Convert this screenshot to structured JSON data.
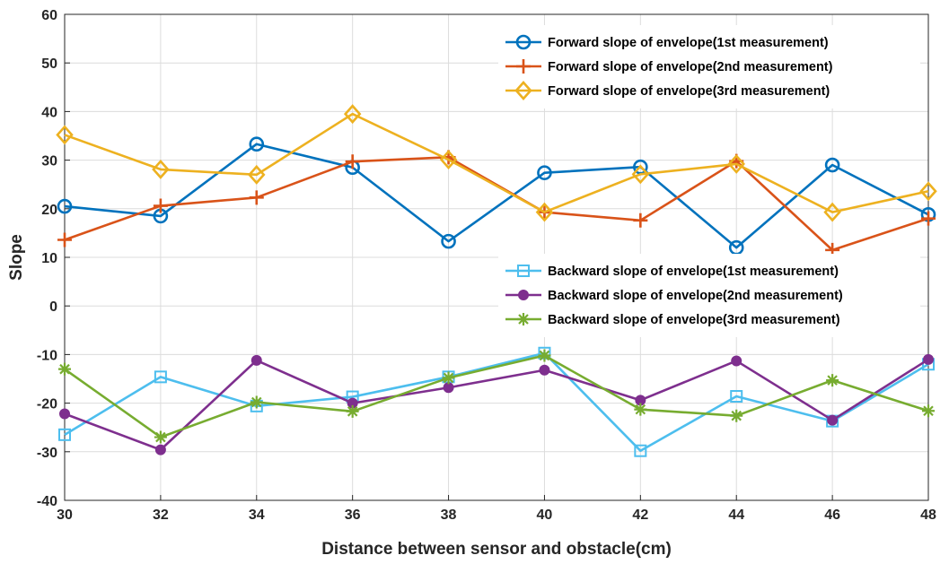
{
  "chart_data": {
    "type": "line",
    "title": "",
    "xlabel": "Distance between sensor and obstacle(cm)",
    "ylabel": "Slope",
    "xlim": [
      30,
      48
    ],
    "ylim": [
      -40,
      60
    ],
    "x": [
      30,
      32,
      34,
      36,
      38,
      40,
      42,
      44,
      46,
      48
    ],
    "x_ticks": [
      "30",
      "32",
      "34",
      "36",
      "38",
      "40",
      "42",
      "44",
      "46",
      "48"
    ],
    "y_ticks": [
      "60",
      "50",
      "40",
      "30",
      "20",
      "10",
      "0",
      "-10",
      "-20",
      "-30",
      "-40"
    ],
    "grid": true,
    "legend_placement": [
      "top-right",
      "middle-right"
    ],
    "series": [
      {
        "name": "Forward slope of envelope(1st measurement)",
        "color": "#0072BD",
        "marker": "circle",
        "values": [
          20.5,
          18.5,
          33.3,
          28.5,
          13.3,
          27.4,
          28.6,
          12.0,
          29.0,
          18.8
        ]
      },
      {
        "name": "Forward slope of envelope(2nd measurement)",
        "color": "#D95319",
        "marker": "plus",
        "values": [
          13.6,
          20.6,
          22.3,
          29.7,
          30.6,
          19.3,
          17.6,
          29.8,
          11.5,
          18.0
        ]
      },
      {
        "name": "Forward slope of envelope(3rd measurement)",
        "color": "#EDB120",
        "marker": "diamond",
        "values": [
          35.2,
          28.1,
          27.0,
          39.5,
          30.1,
          19.3,
          27.1,
          29.2,
          19.3,
          23.6
        ]
      },
      {
        "name": "Backward slope of envelope(1st measurement)",
        "color": "#4DBEEE",
        "marker": "square",
        "values": [
          -26.5,
          -14.6,
          -20.6,
          -18.7,
          -14.6,
          -9.7,
          -29.8,
          -18.6,
          -23.7,
          -12.0
        ]
      },
      {
        "name": "Backward slope of envelope(2nd measurement)",
        "color": "#7E2F8E",
        "marker": "dot",
        "values": [
          -22.2,
          -29.6,
          -11.2,
          -20.0,
          -16.8,
          -13.2,
          -19.4,
          -11.3,
          -23.5,
          -11.0
        ]
      },
      {
        "name": "Backward slope of envelope(3rd measurement)",
        "color": "#77AC30",
        "marker": "asterisk",
        "values": [
          -13.0,
          -27.0,
          -19.8,
          -21.7,
          -14.8,
          -10.2,
          -21.3,
          -22.6,
          -15.3,
          -21.6
        ]
      }
    ]
  }
}
